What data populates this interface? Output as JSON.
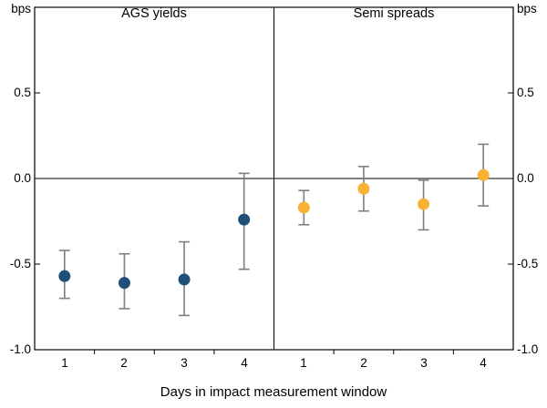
{
  "chart_data": {
    "type": "scatter",
    "subtype": "point-estimates-with-error-bars",
    "unit_left": "bps",
    "unit_right": "bps",
    "xlabel": "Days in impact measurement window",
    "ylim": [
      -1.0,
      1.0
    ],
    "ytick_values": [
      0.5,
      0.0,
      -0.5,
      -1.0
    ],
    "ytick_labels": [
      "0.5",
      "0.0",
      "-0.5",
      "-1.0"
    ],
    "grid": false,
    "zero_line": 0.0,
    "axis_color": "#000000",
    "error_bar_color": "#7f7f7f",
    "panels": [
      {
        "title": "AGS yields",
        "marker_color": "#1F4E79",
        "x": [
          "1",
          "2",
          "3",
          "4"
        ],
        "values": [
          -0.57,
          -0.61,
          -0.59,
          -0.24
        ],
        "ci_high": [
          -0.42,
          -0.44,
          -0.37,
          0.03
        ],
        "ci_low": [
          -0.7,
          -0.76,
          -0.8,
          -0.53
        ]
      },
      {
        "title": "Semi spreads",
        "marker_color": "#F9B234",
        "x": [
          "1",
          "2",
          "3",
          "4"
        ],
        "values": [
          -0.17,
          -0.06,
          -0.15,
          0.02
        ],
        "ci_high": [
          -0.07,
          0.07,
          -0.01,
          0.2
        ],
        "ci_low": [
          -0.27,
          -0.19,
          -0.3,
          -0.16
        ]
      }
    ]
  }
}
